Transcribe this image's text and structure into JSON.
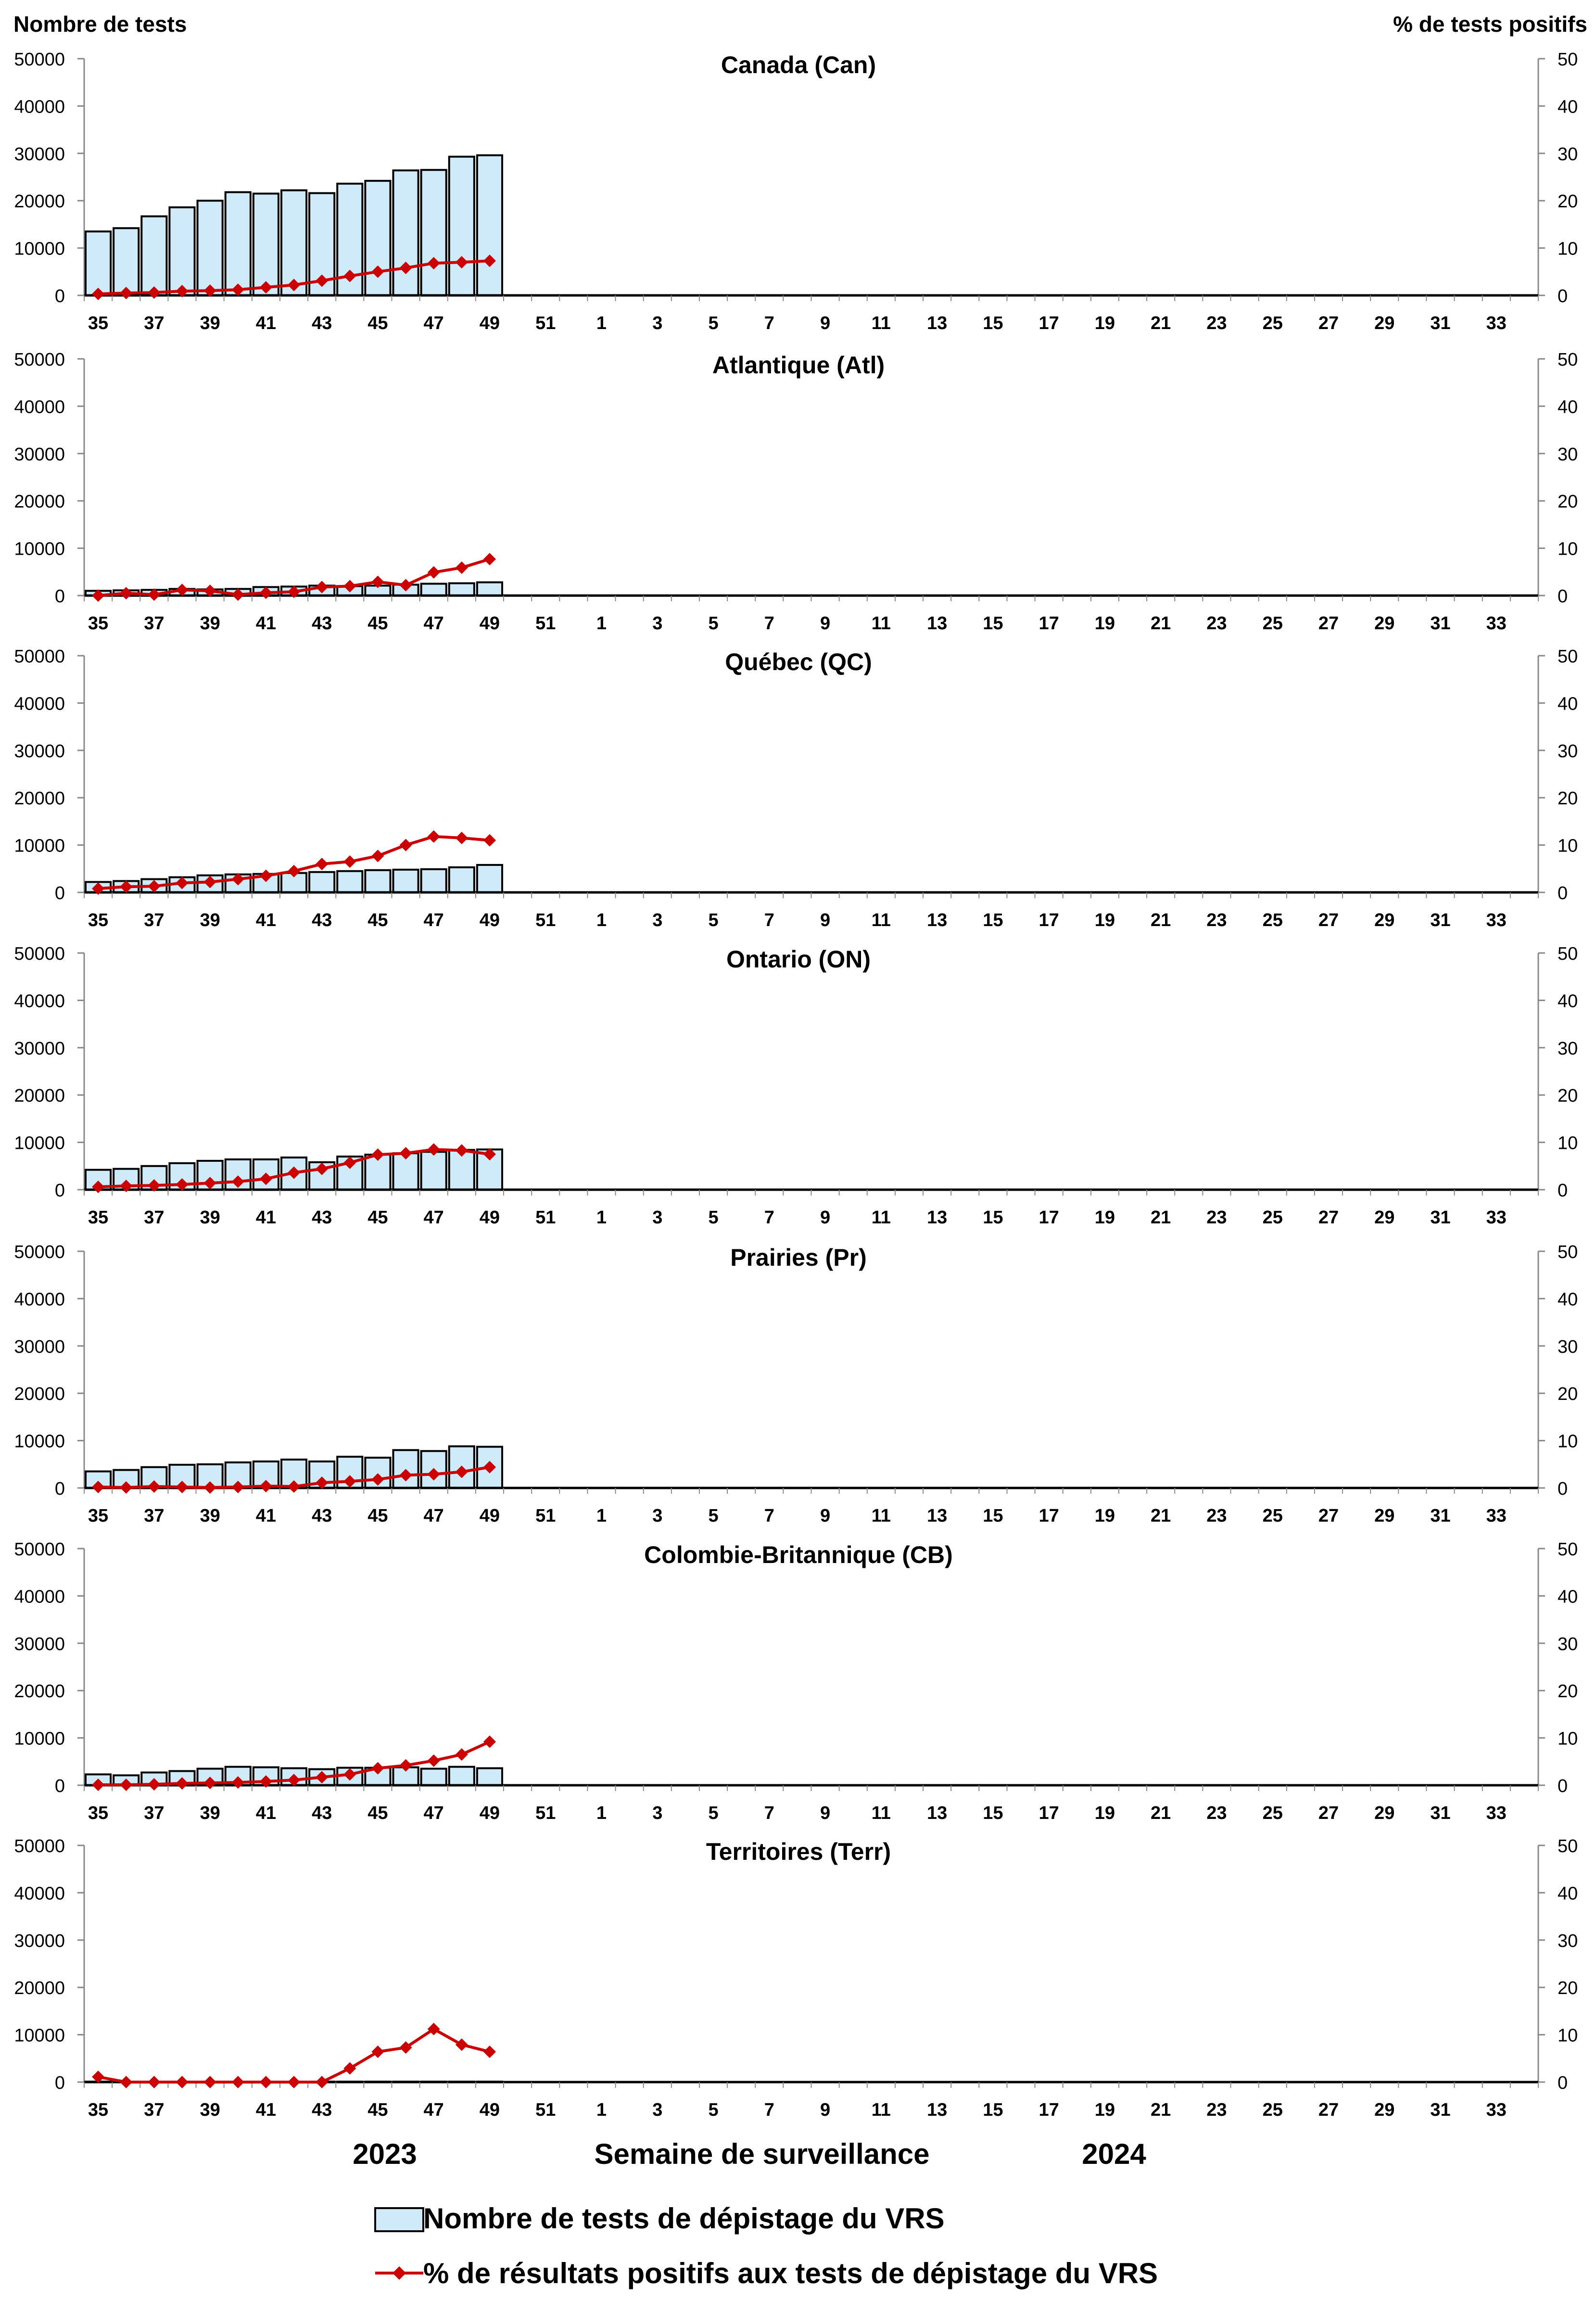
{
  "chart_data": {
    "type": "bar",
    "left_axis_title": "Nombre de tests",
    "right_axis_title": "% de tests positifs",
    "x_axis_title": "Semaine de surveillance",
    "year_labels": [
      "2023",
      "2024"
    ],
    "x_tick_labels": [
      "35",
      "37",
      "39",
      "41",
      "43",
      "45",
      "47",
      "49",
      "51",
      "1",
      "3",
      "5",
      "7",
      "9",
      "11",
      "13",
      "15",
      "17",
      "19",
      "21",
      "23",
      "25",
      "27",
      "29",
      "31",
      "33"
    ],
    "weeks": [
      "35",
      "36",
      "37",
      "38",
      "39",
      "40",
      "41",
      "42",
      "43",
      "44",
      "45",
      "46",
      "47",
      "48",
      "49",
      "50",
      "51",
      "52",
      "1",
      "2",
      "3",
      "4",
      "5",
      "6",
      "7",
      "8",
      "9",
      "10",
      "11",
      "12",
      "13",
      "14",
      "15",
      "16",
      "17",
      "18",
      "19",
      "20",
      "21",
      "22",
      "23",
      "24",
      "25",
      "26",
      "27",
      "28",
      "29",
      "30",
      "31",
      "32",
      "33",
      "34"
    ],
    "ylim_left": [
      0,
      50000
    ],
    "ylim_right": [
      0,
      50
    ],
    "yticks_left": [
      "0",
      "10000",
      "20000",
      "30000",
      "40000",
      "50000"
    ],
    "yticks_right": [
      "0",
      "10",
      "20",
      "30",
      "40",
      "50"
    ],
    "legend": {
      "bar_series": "Nombre de tests de dépistage du VRS",
      "line_series": "% de résultats positifs aux tests de dépistage du VRS"
    },
    "colors": {
      "bar_fill": "#cfeaf8",
      "bar_stroke": "#000000",
      "line": "#cc0000",
      "marker": "#cc0000",
      "axis": "#888888"
    },
    "panels": [
      {
        "title": "Canada (Can)",
        "tests": [
          13500,
          14200,
          16700,
          18600,
          20000,
          21800,
          21500,
          22200,
          21600,
          23600,
          24200,
          26400,
          26500,
          29300,
          29600
        ],
        "pct_positive": [
          0.3,
          0.5,
          0.6,
          0.9,
          1.0,
          1.2,
          1.7,
          2.2,
          3.1,
          4.1,
          5.0,
          5.8,
          6.8,
          7.0,
          7.3
        ]
      },
      {
        "title": "Atlantique (Atl)",
        "tests": [
          1000,
          1100,
          1200,
          1400,
          1300,
          1400,
          1800,
          1900,
          2100,
          2000,
          2100,
          2300,
          2500,
          2600,
          2800
        ],
        "pct_positive": [
          0.0,
          0.5,
          0.2,
          1.2,
          1.0,
          0.2,
          0.6,
          0.8,
          1.8,
          2.0,
          2.9,
          2.2,
          4.9,
          5.9,
          7.7
        ]
      },
      {
        "title": "Québec (QC)",
        "tests": [
          2200,
          2400,
          2800,
          3200,
          3600,
          3800,
          3900,
          4100,
          4300,
          4500,
          4700,
          4800,
          4900,
          5300,
          5800
        ],
        "pct_positive": [
          0.8,
          1.2,
          1.3,
          2.0,
          2.2,
          2.8,
          3.5,
          4.5,
          6.0,
          6.5,
          7.7,
          10.0,
          11.8,
          11.5,
          11.0
        ]
      },
      {
        "title": "Ontario (ON)",
        "tests": [
          4200,
          4400,
          5000,
          5600,
          6100,
          6400,
          6400,
          6800,
          5800,
          7000,
          7400,
          7700,
          8000,
          8400,
          8500
        ],
        "pct_positive": [
          0.6,
          0.8,
          0.9,
          1.1,
          1.4,
          1.7,
          2.3,
          3.6,
          4.4,
          5.7,
          7.4,
          7.7,
          8.5,
          8.3,
          7.5
        ]
      },
      {
        "title": "Prairies (Pr)",
        "tests": [
          3500,
          3800,
          4400,
          4900,
          5000,
          5400,
          5600,
          6000,
          5600,
          6600,
          6400,
          8000,
          7800,
          8800,
          8700
        ],
        "pct_positive": [
          0.2,
          0.1,
          0.3,
          0.2,
          0.1,
          0.2,
          0.4,
          0.3,
          1.1,
          1.4,
          1.8,
          2.7,
          2.9,
          3.4,
          4.4
        ]
      },
      {
        "title": "Colombie-Britannique (CB)",
        "tests": [
          2300,
          2100,
          2700,
          3000,
          3500,
          3900,
          3800,
          3600,
          3400,
          3700,
          3700,
          3800,
          3500,
          3900,
          3600
        ],
        "pct_positive": [
          0.1,
          0.1,
          0.2,
          0.4,
          0.5,
          0.6,
          0.8,
          1.1,
          1.7,
          2.3,
          3.6,
          4.2,
          5.2,
          6.5,
          9.2
        ]
      },
      {
        "title": "Territoires (Terr)",
        "tests": [
          100,
          100,
          100,
          100,
          100,
          100,
          100,
          100,
          100,
          100,
          100,
          100,
          100,
          100,
          100
        ],
        "pct_positive": [
          1.1,
          0.0,
          0.0,
          0.0,
          0.0,
          0.0,
          0.0,
          0.0,
          0.0,
          2.9,
          6.4,
          7.3,
          11.2,
          7.9,
          6.4
        ]
      }
    ]
  }
}
